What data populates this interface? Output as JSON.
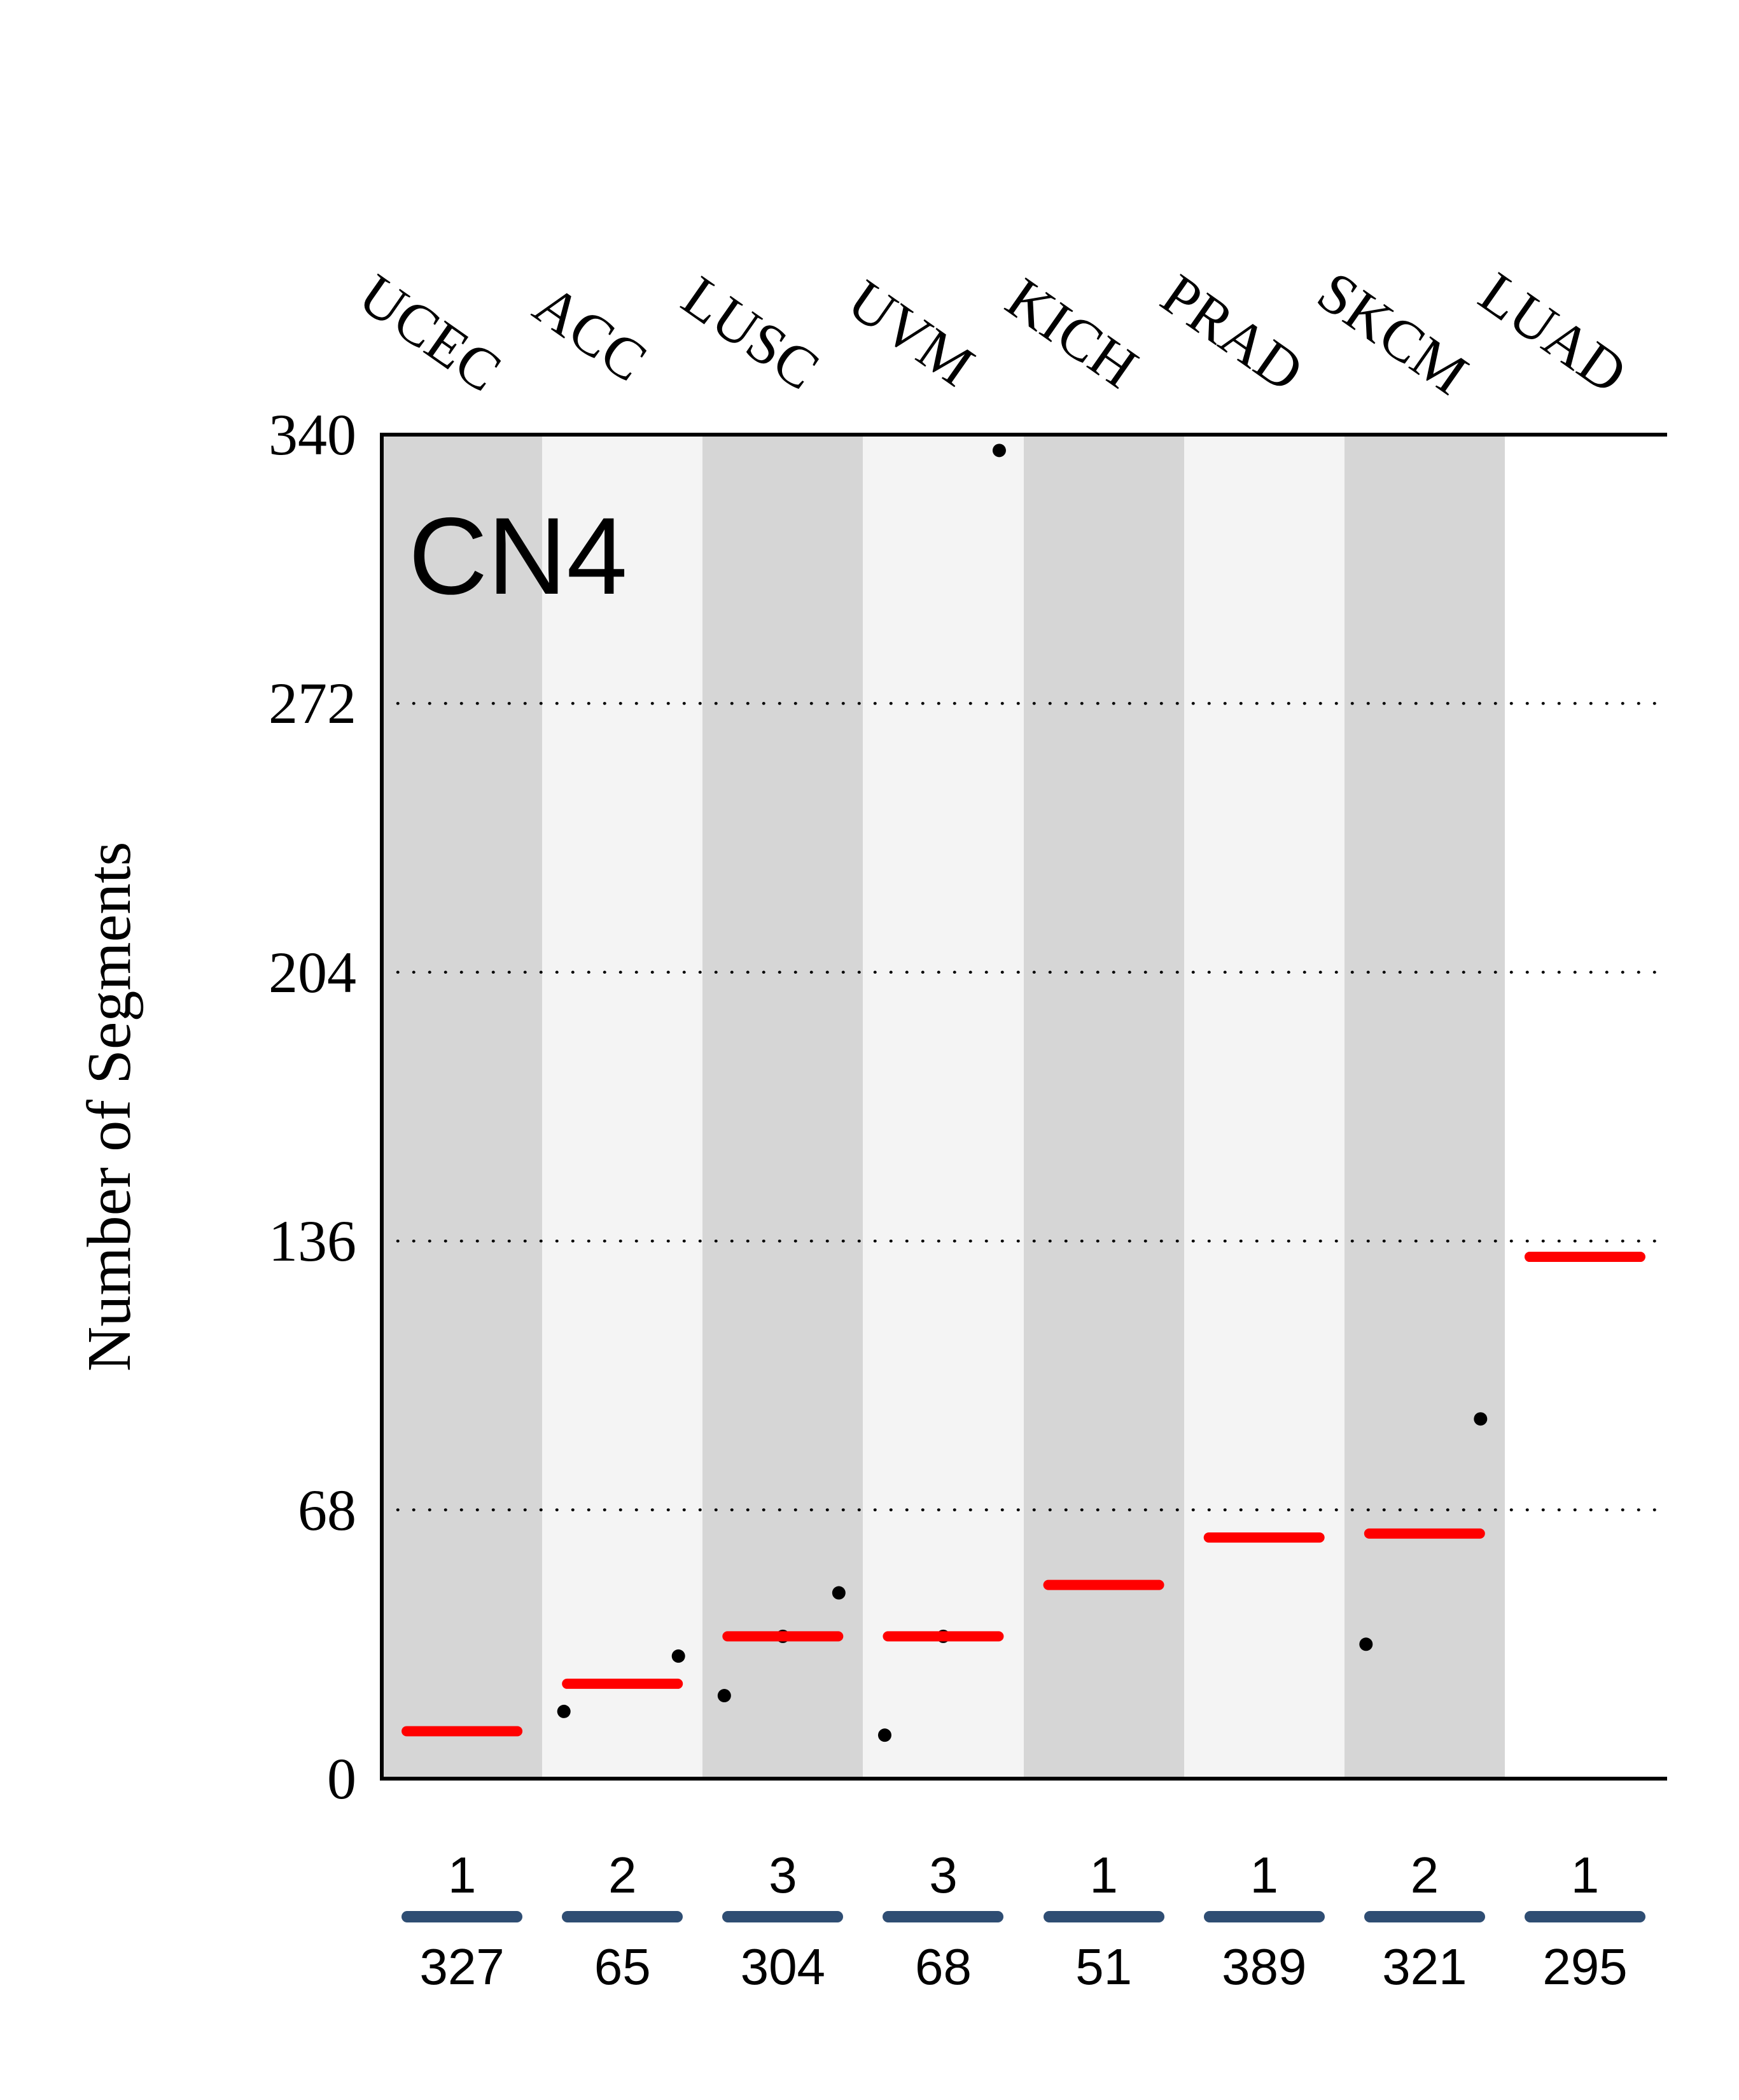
{
  "title": "CN4",
  "y_axis": {
    "label": "Number of Segments",
    "ticks": [
      0,
      68,
      136,
      204,
      272,
      340
    ],
    "gridlines": [
      68,
      136,
      204,
      272
    ],
    "min": 0,
    "max": 340
  },
  "colors": {
    "median_line": "#ff0000",
    "point": "#000000",
    "divider_bar": "#2e4d73",
    "band_dark": "#d6d6d6",
    "band_light": "#f4f4f4",
    "band_plain": "#ffffff",
    "axis": "#000000"
  },
  "chart_data": {
    "type": "scatter",
    "title": "CN4",
    "ylabel": "Number of Segments",
    "ylim": [
      0,
      340
    ],
    "categories": [
      "UCEC",
      "ACC",
      "LUSC",
      "UVM",
      "KICH",
      "PRAD",
      "SKCM",
      "LUAD"
    ],
    "medians": [
      12,
      24,
      36,
      36,
      49,
      61,
      62,
      132
    ],
    "points": [
      [],
      [
        {
          "value": 17,
          "pos": -1
        },
        {
          "value": 31,
          "pos": 1
        }
      ],
      [
        {
          "value": 21,
          "pos": -1
        },
        {
          "value": 36,
          "pos": 0
        },
        {
          "value": 47,
          "pos": 1
        }
      ],
      [
        {
          "value": 11,
          "pos": -1
        },
        {
          "value": 36,
          "pos": 0
        },
        {
          "value": 336,
          "pos": 1
        }
      ],
      [],
      [],
      [
        {
          "value": 34,
          "pos": -1
        },
        {
          "value": 91,
          "pos": 1
        }
      ],
      []
    ],
    "sample_sizes": [
      1,
      2,
      3,
      3,
      1,
      1,
      2,
      1
    ],
    "counts": [
      327,
      65,
      304,
      68,
      51,
      389,
      321,
      295
    ]
  }
}
